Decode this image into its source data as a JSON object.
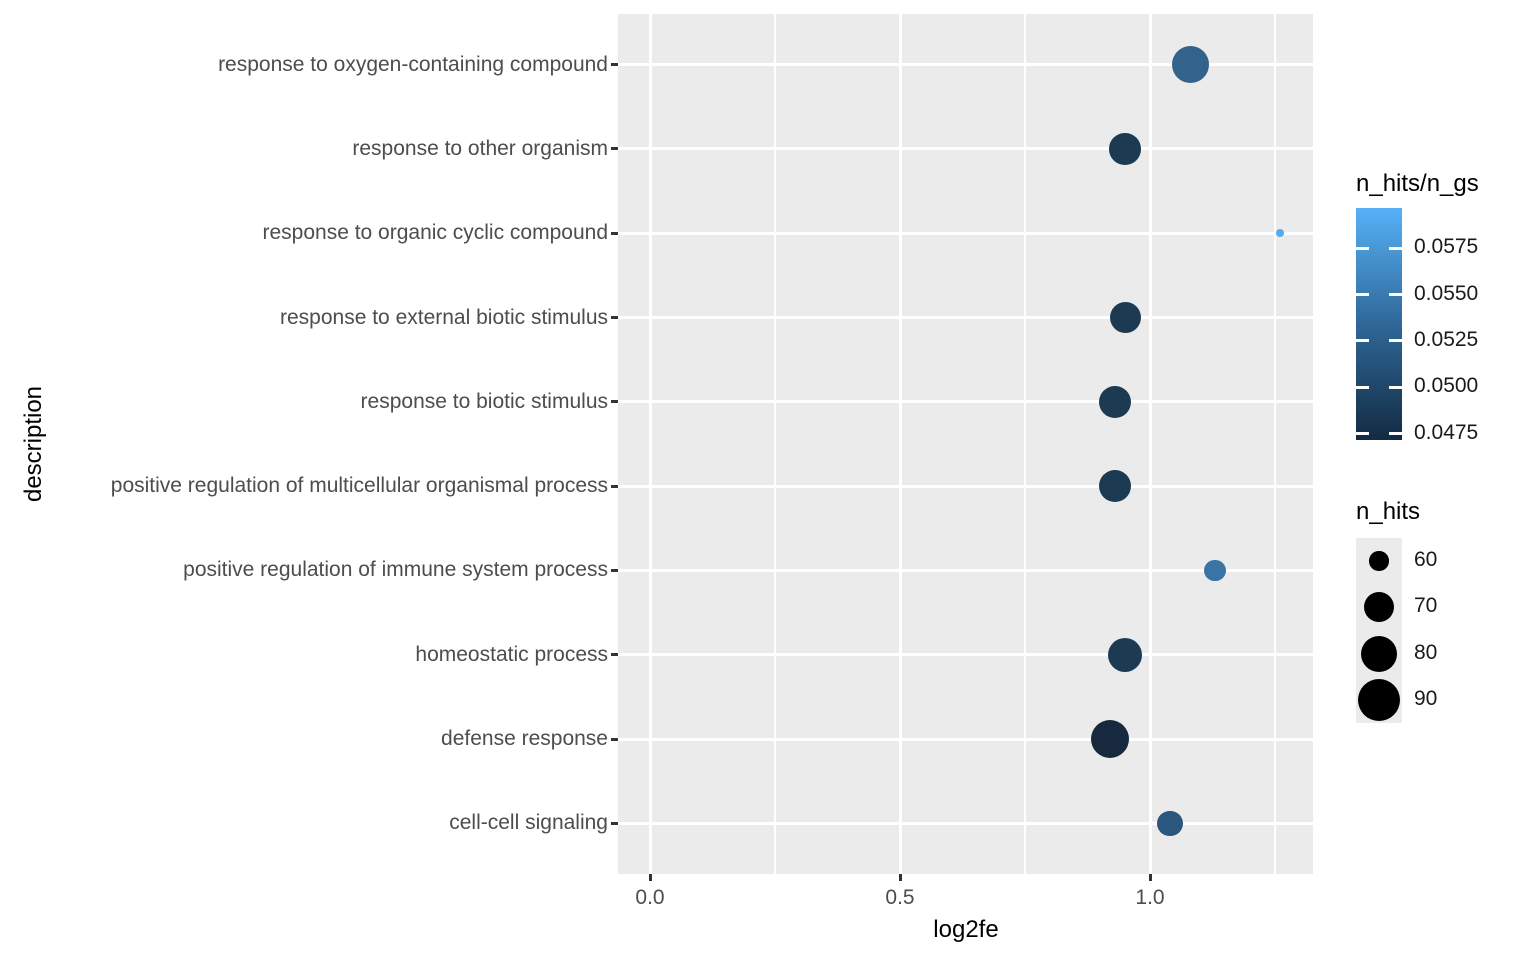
{
  "figure": {
    "background": "#ffffff",
    "panel_background": "#ebebeb",
    "grid_color": "#ffffff",
    "tick_mark_color": "#333333",
    "axis_text_color": "#4d4d4d",
    "title_text_color": "#000000"
  },
  "chart_data": {
    "type": "scatter",
    "title": "",
    "xlabel": "log2fe",
    "ylabel": "description",
    "xlim": [
      -0.064,
      1.326
    ],
    "x_tick_labels": [
      "0.0",
      "0.5",
      "1.0"
    ],
    "x_tick_values": [
      0.0,
      0.5,
      1.0
    ],
    "x_minor_tick_values": [
      0.25,
      0.75,
      1.25
    ],
    "grid": true,
    "legend_position": "right",
    "categories_top_to_bottom": [
      "response to oxygen-containing compound",
      "response to other organism",
      "response to organic cyclic compound",
      "response to external biotic stimulus",
      "response to biotic stimulus",
      "positive regulation of multicellular organismal process",
      "positive regulation of immune system process",
      "homeostatic process",
      "defense response",
      "cell-cell signaling"
    ],
    "points": [
      {
        "description": "response to oxygen-containing compound",
        "log2fe": 1.08,
        "n_hits": 82,
        "n_hits_n_gs": 0.0525,
        "color": "#33628a",
        "radius_px": 18.5
      },
      {
        "description": "response to other organism",
        "log2fe": 0.95,
        "n_hits": 72,
        "n_hits_n_gs": 0.0488,
        "color": "#1d3a53",
        "radius_px": 15.8
      },
      {
        "description": "response to organic cyclic compound",
        "log2fe": 1.26,
        "n_hits": 48,
        "n_hits_n_gs": 0.0585,
        "color": "#55abee",
        "radius_px": 4.2
      },
      {
        "description": "response to external biotic stimulus",
        "log2fe": 0.95,
        "n_hits": 71,
        "n_hits_n_gs": 0.0488,
        "color": "#1d3a53",
        "radius_px": 15.5
      },
      {
        "description": "response to biotic stimulus",
        "log2fe": 0.93,
        "n_hits": 72,
        "n_hits_n_gs": 0.0488,
        "color": "#1d3a53",
        "radius_px": 16
      },
      {
        "description": "positive regulation of multicellular organismal process",
        "log2fe": 0.93,
        "n_hits": 72,
        "n_hits_n_gs": 0.0488,
        "color": "#1d3a53",
        "radius_px": 16
      },
      {
        "description": "positive regulation of immune system process",
        "log2fe": 1.13,
        "n_hits": 60,
        "n_hits_n_gs": 0.054,
        "color": "#3a74a5",
        "radius_px": 10.8
      },
      {
        "description": "homeostatic process",
        "log2fe": 0.95,
        "n_hits": 76,
        "n_hits_n_gs": 0.0488,
        "color": "#1d3a53",
        "radius_px": 17.2
      },
      {
        "description": "defense response",
        "log2fe": 0.92,
        "n_hits": 85,
        "n_hits_n_gs": 0.0476,
        "color": "#17293f",
        "radius_px": 19.2
      },
      {
        "description": "cell-cell signaling",
        "log2fe": 1.04,
        "n_hits": 64,
        "n_hits_n_gs": 0.0512,
        "color": "#2b567d",
        "radius_px": 12.7
      }
    ],
    "color_legend": {
      "title": "n_hits/n_gs",
      "tick_labels": [
        "0.0575",
        "0.0550",
        "0.0525",
        "0.0500",
        "0.0475"
      ],
      "gradient_bottom": "#132b43",
      "gradient_mid": "#2f6898",
      "gradient_top": "#56b1f7"
    },
    "size_legend": {
      "title": "n_hits",
      "entries": [
        {
          "label": "60",
          "radius_px": 9.7
        },
        {
          "label": "70",
          "radius_px": 15
        },
        {
          "label": "80",
          "radius_px": 18
        },
        {
          "label": "90",
          "radius_px": 21
        }
      ]
    }
  }
}
